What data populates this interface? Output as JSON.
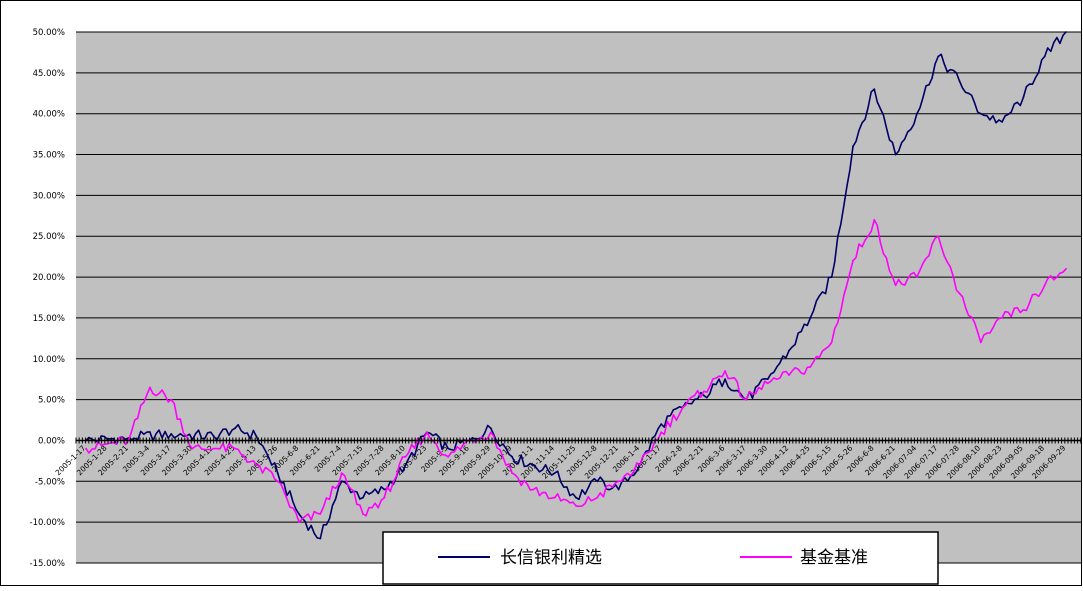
{
  "chart_data": {
    "type": "line",
    "title": "",
    "xlabel": "",
    "ylabel": "",
    "ylim": [
      -15,
      50
    ],
    "yticks": [
      "50.00%",
      "45.00%",
      "40.00%",
      "35.00%",
      "30.00%",
      "25.00%",
      "20.00%",
      "15.00%",
      "10.00%",
      "5.00%",
      "0.00%",
      "-5.00%",
      "-10.00%",
      "-15.00%"
    ],
    "ytick_values": [
      50,
      45,
      40,
      35,
      30,
      25,
      20,
      15,
      10,
      5,
      0,
      -5,
      -10,
      -15
    ],
    "x_tick_labels": [
      "2005-1-17",
      "2005-1-28",
      "2005-2-21",
      "2005-3-4",
      "2005-3-17",
      "2005-3-30",
      "2005-4-12",
      "2005-4-25",
      "2005-5-13",
      "2005-5-26",
      "2005-6-8",
      "2005-6-21",
      "2005-7-4",
      "2005-7-15",
      "2005-7-28",
      "2005-8-10",
      "2005-8-23",
      "2005-9-5",
      "2005-9-16",
      "2005-9-29",
      "2005-10-19",
      "2005-11-1",
      "2005-11-14",
      "2005-11-25",
      "2005-12-8",
      "2005-12-21",
      "2006-1-4",
      "2006-1-17",
      "2006-2-8",
      "2006-2-21",
      "2006-3-6",
      "2006-3-17",
      "2006-3-30",
      "2006-4-12",
      "2006-4-25",
      "2006-5-15",
      "2006-5-26",
      "2006-6-8",
      "2006-6-21",
      "2006-07-04",
      "2006-07-17",
      "2006-07-28",
      "2006-08-10",
      "2006-08-23",
      "2006-09-05",
      "2006-09-18",
      "2006-09-29"
    ],
    "grid": true,
    "plot_background": "#c0c0c0",
    "legend_position": "bottom-center",
    "series": [
      {
        "name": "长信银利精选",
        "color": "#000066",
        "x": [
          "2005-1-17",
          "2005-2-21",
          "2005-3-17",
          "2005-4-12",
          "2005-4-25",
          "2005-5-13",
          "2005-5-26",
          "2005-6-8",
          "2005-6-21",
          "2005-7-4",
          "2005-7-15",
          "2005-7-28",
          "2005-8-10",
          "2005-8-23",
          "2005-9-5",
          "2005-9-16",
          "2005-9-29",
          "2005-10-19",
          "2005-11-1",
          "2005-11-14",
          "2005-11-25",
          "2005-12-8",
          "2005-12-21",
          "2006-1-4",
          "2006-1-17",
          "2006-2-8",
          "2006-2-21",
          "2006-3-6",
          "2006-3-17",
          "2006-3-30",
          "2006-4-12",
          "2006-4-25",
          "2006-5-15",
          "2006-5-26",
          "2006-6-8",
          "2006-6-21",
          "2006-07-04",
          "2006-07-17",
          "2006-07-28",
          "2006-08-10",
          "2006-08-23",
          "2006-09-05",
          "2006-09-18",
          "2006-09-29"
        ],
        "values": [
          0,
          0.3,
          0.8,
          0.5,
          1.5,
          0.5,
          -4,
          -9,
          -12,
          -5,
          -7,
          -6,
          -3,
          1,
          -1,
          0,
          1.5,
          -2,
          -3,
          -4,
          -7,
          -5,
          -6,
          -3,
          2,
          4,
          5.5,
          7.5,
          5,
          7.5,
          11,
          15,
          20,
          36,
          43,
          35,
          40,
          47,
          44,
          40,
          39,
          42,
          47,
          50
        ]
      },
      {
        "name": "基金基准",
        "color": "#ff00ff",
        "x": [
          "2005-1-17",
          "2005-2-21",
          "2005-3-4",
          "2005-3-17",
          "2005-3-30",
          "2005-4-12",
          "2005-4-25",
          "2005-5-13",
          "2005-5-26",
          "2005-6-8",
          "2005-6-21",
          "2005-7-4",
          "2005-7-15",
          "2005-7-28",
          "2005-8-10",
          "2005-8-23",
          "2005-9-5",
          "2005-9-16",
          "2005-9-29",
          "2005-10-19",
          "2005-11-1",
          "2005-11-14",
          "2005-11-25",
          "2005-12-8",
          "2005-12-21",
          "2006-1-4",
          "2006-1-17",
          "2006-2-8",
          "2006-2-21",
          "2006-3-6",
          "2006-3-17",
          "2006-3-30",
          "2006-4-12",
          "2006-4-25",
          "2006-5-15",
          "2006-5-26",
          "2006-6-8",
          "2006-6-21",
          "2006-07-04",
          "2006-07-17",
          "2006-07-28",
          "2006-08-10",
          "2006-08-23",
          "2006-09-05",
          "2006-09-18",
          "2006-09-29"
        ],
        "values": [
          -1,
          0,
          6.5,
          5,
          -1,
          -1,
          -1,
          -3,
          -5,
          -10,
          -9,
          -4,
          -9,
          -7,
          -2,
          1,
          -2,
          0,
          1,
          -4,
          -6,
          -7,
          -8,
          -7,
          -5,
          -3,
          1,
          4,
          6,
          8.5,
          5,
          7,
          8,
          9,
          12,
          22,
          27,
          19,
          20,
          25,
          18,
          12,
          15,
          16,
          19,
          21
        ]
      }
    ]
  }
}
